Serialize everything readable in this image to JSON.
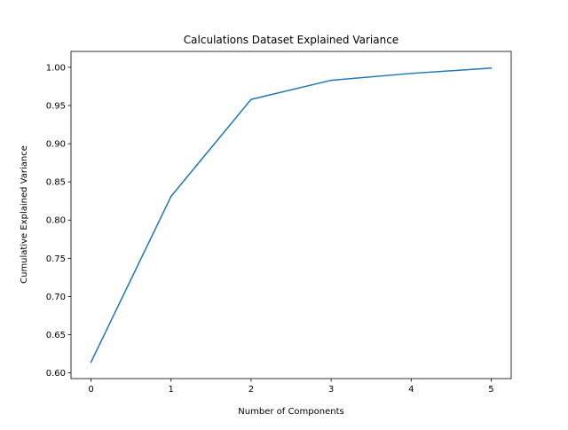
{
  "chart_data": {
    "type": "line",
    "title": "Calculations Dataset Explained Variance",
    "xlabel": "Number of Components",
    "ylabel": "Cumulative Explained Variance",
    "x": [
      0,
      1,
      2,
      3,
      4,
      5
    ],
    "series": [
      {
        "values": [
          0.614,
          0.831,
          0.958,
          0.983,
          0.992,
          0.999
        ],
        "color": "#1f77b4"
      }
    ],
    "xlim": [
      -0.25,
      5.25
    ],
    "ylim": [
      0.5925,
      1.0208
    ],
    "xticks": [
      0,
      1,
      2,
      3,
      4,
      5
    ],
    "xtick_labels": [
      "0",
      "1",
      "2",
      "3",
      "4",
      "5"
    ],
    "yticks": [
      0.6,
      0.65,
      0.7,
      0.75,
      0.8,
      0.85,
      0.9,
      0.95,
      1.0
    ],
    "ytick_labels": [
      "0.60",
      "0.65",
      "0.70",
      "0.75",
      "0.80",
      "0.85",
      "0.90",
      "0.95",
      "1.00"
    ],
    "grid": false,
    "legend": "none"
  }
}
